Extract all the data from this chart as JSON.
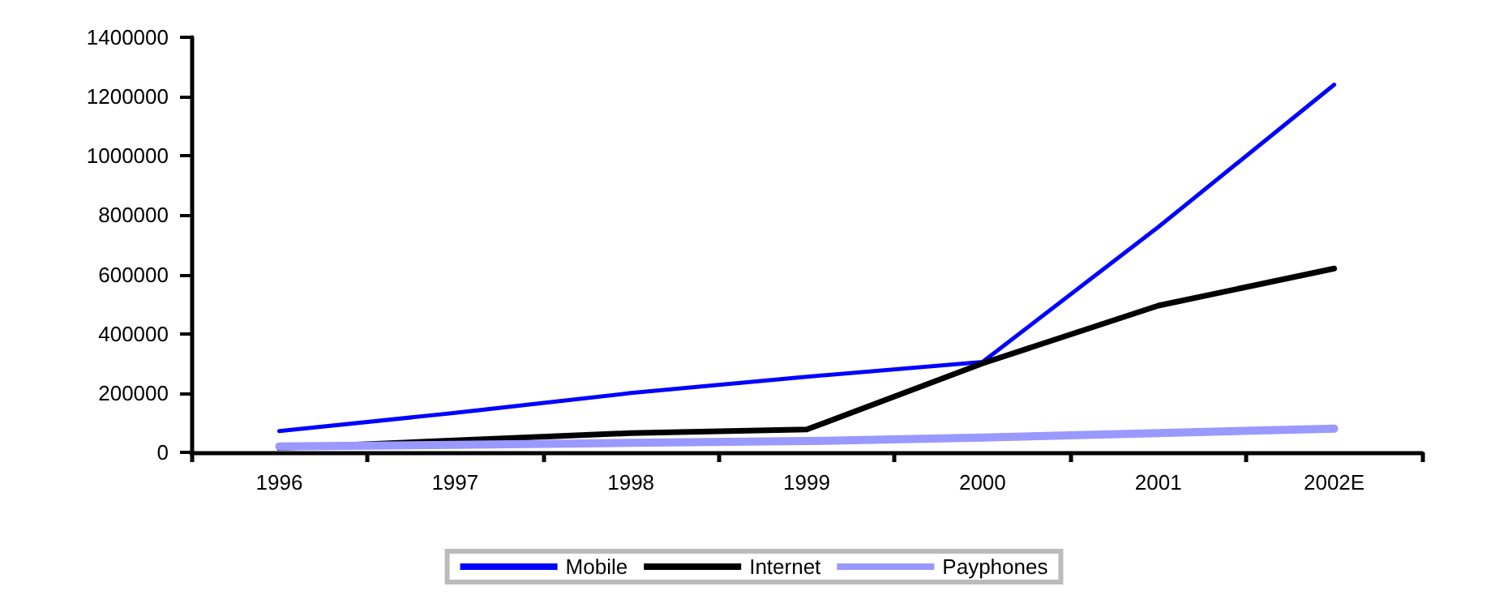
{
  "chart_data": {
    "type": "line",
    "categories": [
      "1996",
      "1997",
      "1998",
      "1999",
      "2000",
      "2001",
      "2002E"
    ],
    "series": [
      {
        "name": "Mobile",
        "color": "#0000ff",
        "values": [
          72000,
          133000,
          200000,
          255000,
          305000,
          760000,
          1240000
        ]
      },
      {
        "name": "Internet",
        "color": "#000000",
        "values": [
          15000,
          40000,
          65000,
          77000,
          300000,
          495000,
          620000
        ]
      },
      {
        "name": "Payphones",
        "color": "#9999ff",
        "values": [
          20000,
          25000,
          32000,
          38000,
          50000,
          65000,
          80000
        ]
      }
    ],
    "ylim": [
      0,
      1400000
    ],
    "yticks": [
      0,
      200000,
      400000,
      600000,
      800000,
      1000000,
      1200000,
      1400000
    ],
    "grid": false,
    "legend": "bottom",
    "marker": "none",
    "line_style": "solid"
  }
}
